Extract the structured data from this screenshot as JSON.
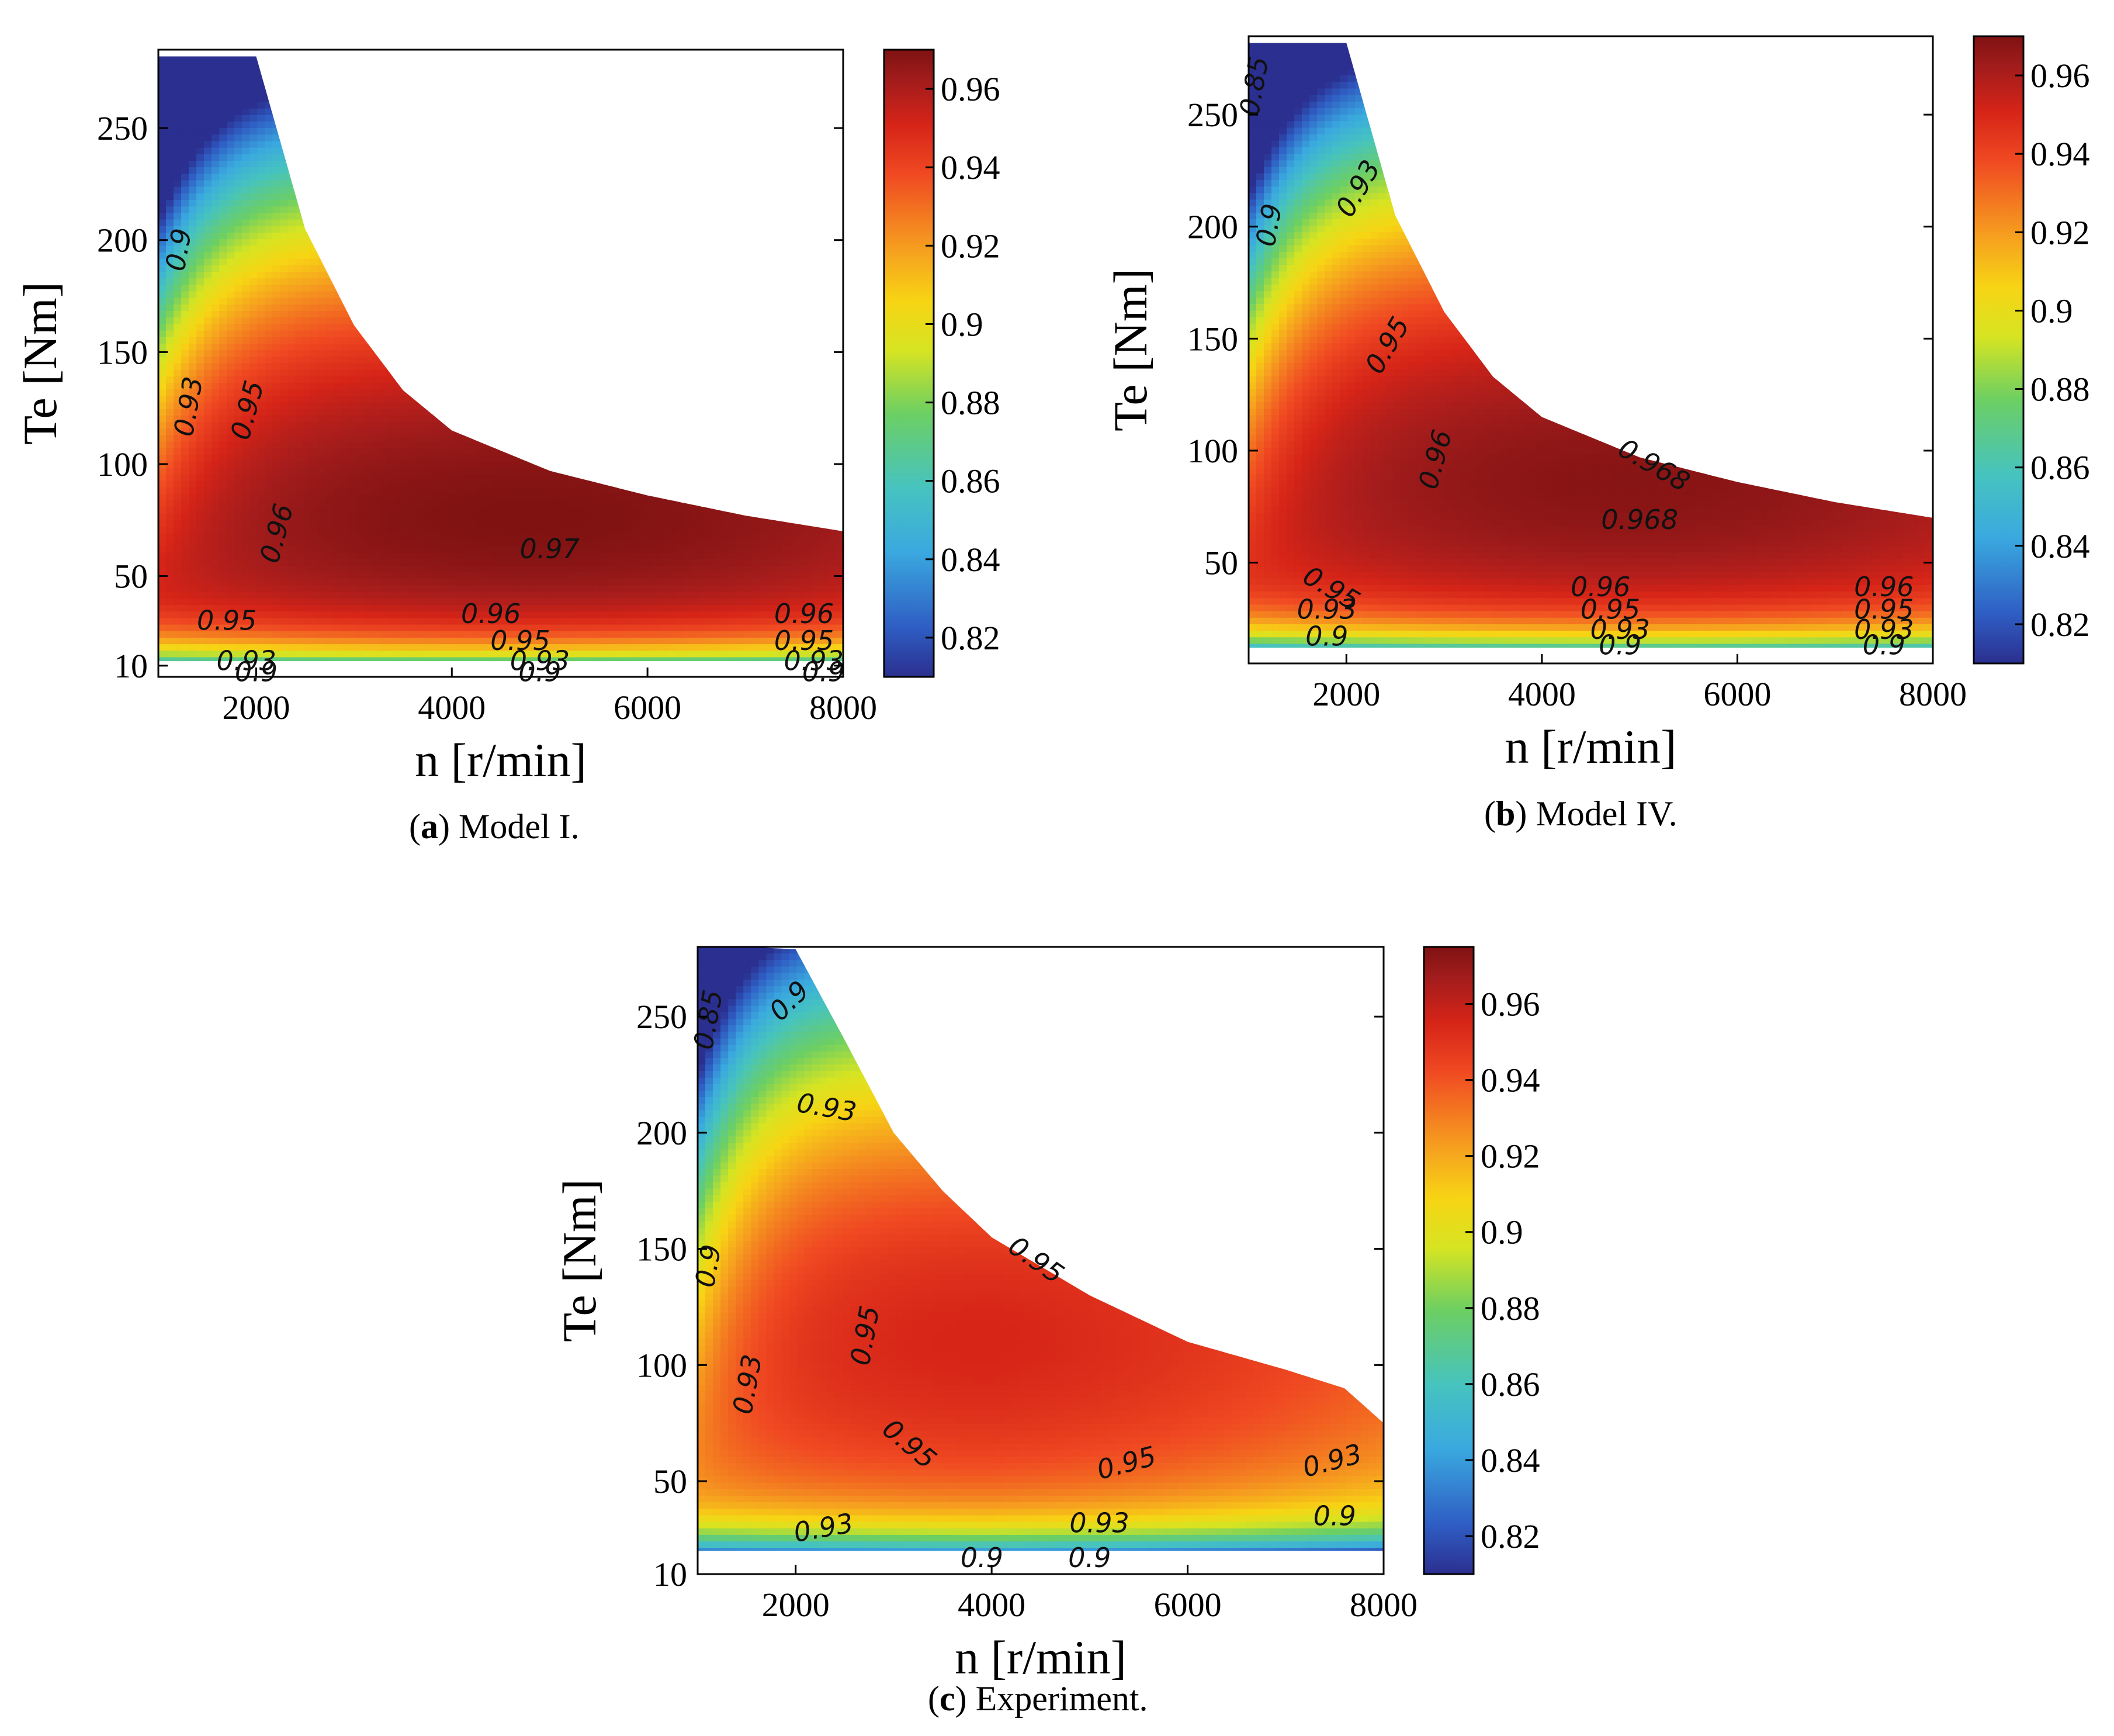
{
  "colorbar_colors": [
    "#2b2f8f",
    "#2f5ec4",
    "#3aa9df",
    "#46c3c0",
    "#6ccf63",
    "#d6e422",
    "#f7d414",
    "#f6a01f",
    "#f04a22",
    "#d62418",
    "#a31c1c",
    "#7f1212"
  ],
  "chart_data": [
    {
      "type": "contour",
      "panel": "a",
      "caption_letter": "a",
      "caption_text": "Model I.",
      "xlabel": "n [r/min]",
      "ylabel": "Te [Nm]",
      "xlim": [
        1000,
        8000
      ],
      "ylim": [
        5,
        285
      ],
      "xticks": [
        2000,
        4000,
        6000,
        8000
      ],
      "xtick_labels": [
        "2000",
        "4000",
        "6000",
        "8000"
      ],
      "yticks": [
        10,
        50,
        100,
        150,
        200,
        250
      ],
      "ytick_labels": [
        "10",
        "50",
        "100",
        "150",
        "200",
        "250"
      ],
      "colorbar": {
        "min": 0.81,
        "max": 0.97,
        "ticks": [
          0.82,
          0.84,
          0.86,
          0.88,
          0.9,
          0.92,
          0.94,
          0.96
        ],
        "tick_labels": [
          "0.82",
          "0.84",
          "0.86",
          "0.88",
          "0.9",
          "0.92",
          "0.94",
          "0.96"
        ]
      },
      "peak": {
        "n": 4800,
        "te": 75,
        "eff": 0.97
      },
      "low_te_limit": 12,
      "max_torque_curve": [
        [
          1000,
          282
        ],
        [
          2000,
          282
        ],
        [
          2500,
          205
        ],
        [
          3000,
          162
        ],
        [
          3500,
          133
        ],
        [
          4000,
          115
        ],
        [
          5000,
          97
        ],
        [
          6000,
          86
        ],
        [
          7000,
          77
        ],
        [
          8000,
          70
        ]
      ],
      "contour_labels": [
        {
          "text": "0.9",
          "n": 1300,
          "te": 195,
          "rot": -80
        },
        {
          "text": "0.93",
          "n": 1400,
          "te": 125,
          "rot": -80
        },
        {
          "text": "0.95",
          "n": 2000,
          "te": 123,
          "rot": -75
        },
        {
          "text": "0.96",
          "n": 2300,
          "te": 68,
          "rot": -75
        },
        {
          "text": "0.97",
          "n": 5000,
          "te": 58,
          "rot": 0
        },
        {
          "text": "0.95",
          "n": 1700,
          "te": 26,
          "rot": 0
        },
        {
          "text": "0.93",
          "n": 1900,
          "te": 8,
          "rot": 0
        },
        {
          "text": "0.9",
          "n": 2000,
          "te": 3,
          "rot": 0
        },
        {
          "text": "0.96",
          "n": 4400,
          "te": 29,
          "rot": 0
        },
        {
          "text": "0.95",
          "n": 4700,
          "te": 17,
          "rot": 0
        },
        {
          "text": "0.93",
          "n": 4900,
          "te": 8,
          "rot": 0
        },
        {
          "text": "0.9",
          "n": 4900,
          "te": 3,
          "rot": 0
        },
        {
          "text": "0.96",
          "n": 7600,
          "te": 29,
          "rot": 0
        },
        {
          "text": "0.95",
          "n": 7600,
          "te": 17,
          "rot": 0
        },
        {
          "text": "0.93",
          "n": 7700,
          "te": 8,
          "rot": 0
        },
        {
          "text": "0.9",
          "n": 7800,
          "te": 3,
          "rot": 0
        }
      ]
    },
    {
      "type": "contour",
      "panel": "b",
      "caption_letter": "b",
      "caption_text": "Model IV.",
      "xlabel": "n [r/min]",
      "ylabel": "Te [Nm]",
      "xlim": [
        1000,
        8000
      ],
      "ylim": [
        5,
        285
      ],
      "xticks": [
        2000,
        4000,
        6000,
        8000
      ],
      "xtick_labels": [
        "2000",
        "4000",
        "6000",
        "8000"
      ],
      "yticks": [
        50,
        100,
        150,
        200,
        250
      ],
      "ytick_labels": [
        "50",
        "100",
        "150",
        "200",
        "250"
      ],
      "colorbar": {
        "min": 0.81,
        "max": 0.97,
        "ticks": [
          0.82,
          0.84,
          0.86,
          0.88,
          0.9,
          0.92,
          0.94,
          0.96
        ],
        "tick_labels": [
          "0.82",
          "0.84",
          "0.86",
          "0.88",
          "0.9",
          "0.92",
          "0.94",
          "0.96"
        ]
      },
      "peak": {
        "n": 4900,
        "te": 85,
        "eff": 0.968
      },
      "low_te_limit": 12,
      "max_torque_curve": [
        [
          1000,
          282
        ],
        [
          2000,
          282
        ],
        [
          2500,
          205
        ],
        [
          3000,
          162
        ],
        [
          3500,
          133
        ],
        [
          4000,
          115
        ],
        [
          5000,
          97
        ],
        [
          6000,
          86
        ],
        [
          7000,
          77
        ],
        [
          8000,
          70
        ]
      ],
      "contour_labels": [
        {
          "text": "0.85",
          "n": 1150,
          "te": 262,
          "rot": -80
        },
        {
          "text": "0.9",
          "n": 1300,
          "te": 200,
          "rot": -80
        },
        {
          "text": "0.93",
          "n": 2200,
          "te": 215,
          "rot": -60
        },
        {
          "text": "0.95",
          "n": 2500,
          "te": 145,
          "rot": -60
        },
        {
          "text": "0.96",
          "n": 3000,
          "te": 95,
          "rot": -75
        },
        {
          "text": "0.968",
          "n": 5100,
          "te": 90,
          "rot": 30
        },
        {
          "text": "0.968",
          "n": 5000,
          "te": 65,
          "rot": 0
        },
        {
          "text": "0.95",
          "n": 1800,
          "te": 35,
          "rot": 30
        },
        {
          "text": "0.93",
          "n": 1800,
          "te": 25,
          "rot": 0
        },
        {
          "text": "0.9",
          "n": 1800,
          "te": 13,
          "rot": 0
        },
        {
          "text": "0.96",
          "n": 4600,
          "te": 35,
          "rot": 0
        },
        {
          "text": "0.95",
          "n": 4700,
          "te": 25,
          "rot": 0
        },
        {
          "text": "0.93",
          "n": 4800,
          "te": 16,
          "rot": 0
        },
        {
          "text": "0.9",
          "n": 4800,
          "te": 9,
          "rot": 0
        },
        {
          "text": "0.96",
          "n": 7500,
          "te": 35,
          "rot": 0
        },
        {
          "text": "0.95",
          "n": 7500,
          "te": 25,
          "rot": 0
        },
        {
          "text": "0.93",
          "n": 7500,
          "te": 16,
          "rot": 0
        },
        {
          "text": "0.9",
          "n": 7500,
          "te": 9,
          "rot": 0
        }
      ]
    },
    {
      "type": "contour",
      "panel": "c",
      "caption_letter": "c",
      "caption_text": "Experiment.",
      "xlabel": "n [r/min]",
      "ylabel": "Te [Nm]",
      "xlim": [
        1000,
        8000
      ],
      "ylim": [
        10,
        280
      ],
      "xticks": [
        2000,
        4000,
        6000,
        8000
      ],
      "xtick_labels": [
        "2000",
        "4000",
        "6000",
        "8000"
      ],
      "yticks": [
        10,
        50,
        100,
        150,
        200,
        250
      ],
      "ytick_labels": [
        "10",
        "50",
        "100",
        "150",
        "200",
        "250"
      ],
      "colorbar": {
        "min": 0.81,
        "max": 0.975,
        "ticks": [
          0.82,
          0.84,
          0.86,
          0.88,
          0.9,
          0.92,
          0.94,
          0.96
        ],
        "tick_labels": [
          "0.82",
          "0.84",
          "0.86",
          "0.88",
          "0.9",
          "0.92",
          "0.94",
          "0.96"
        ]
      },
      "peak": {
        "n": 4000,
        "te": 110,
        "eff": 0.955
      },
      "low_te_limit": 20,
      "max_torque_curve": [
        [
          1000,
          280
        ],
        [
          1500,
          280
        ],
        [
          2000,
          279
        ],
        [
          2500,
          240
        ],
        [
          3000,
          200
        ],
        [
          3500,
          175
        ],
        [
          4000,
          155
        ],
        [
          5000,
          130
        ],
        [
          6000,
          110
        ],
        [
          7000,
          98
        ],
        [
          7600,
          90
        ],
        [
          8000,
          75
        ]
      ],
      "contour_labels": [
        {
          "text": "0.85",
          "n": 1200,
          "te": 248,
          "rot": -80
        },
        {
          "text": "0.9",
          "n": 2000,
          "te": 254,
          "rot": -45
        },
        {
          "text": "0.93",
          "n": 2300,
          "te": 207,
          "rot": 10
        },
        {
          "text": "0.9",
          "n": 1200,
          "te": 142,
          "rot": -80
        },
        {
          "text": "0.93",
          "n": 1600,
          "te": 91,
          "rot": -80
        },
        {
          "text": "0.95",
          "n": 2800,
          "te": 112,
          "rot": -80
        },
        {
          "text": "0.95",
          "n": 4400,
          "te": 142,
          "rot": 35
        },
        {
          "text": "0.95",
          "n": 3100,
          "te": 63,
          "rot": 40
        },
        {
          "text": "0.95",
          "n": 5400,
          "te": 54,
          "rot": -15
        },
        {
          "text": "0.93",
          "n": 7500,
          "te": 55,
          "rot": -15
        },
        {
          "text": "0.93",
          "n": 2300,
          "te": 26,
          "rot": -10
        },
        {
          "text": "0.93",
          "n": 5100,
          "te": 28,
          "rot": 0
        },
        {
          "text": "0.9",
          "n": 3900,
          "te": 13,
          "rot": 0
        },
        {
          "text": "0.9",
          "n": 5000,
          "te": 13,
          "rot": 0
        },
        {
          "text": "0.9",
          "n": 7500,
          "te": 31,
          "rot": 0
        }
      ]
    }
  ]
}
